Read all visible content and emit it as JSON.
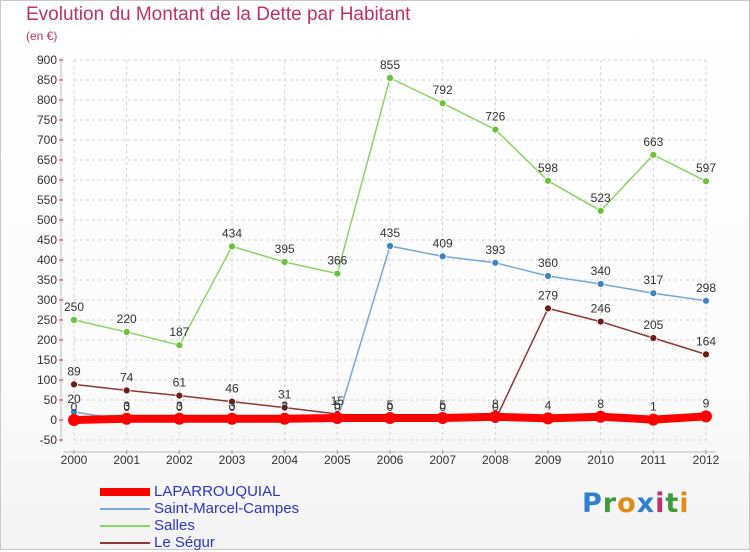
{
  "title": "Evolution du Montant de la Dette par Habitant",
  "unit": "(en €)",
  "logo": {
    "letters": [
      {
        "ch": "P",
        "color": "#2f7fd0"
      },
      {
        "ch": "r",
        "color": "#3d9a3d"
      },
      {
        "ch": "o",
        "color": "#e08a1a"
      },
      {
        "ch": "x",
        "color": "#2f7fd0"
      },
      {
        "ch": "i",
        "color": "#c0306b"
      },
      {
        "ch": "t",
        "color": "#3d9a3d"
      },
      {
        "ch": "i",
        "color": "#e08a1a"
      }
    ]
  },
  "chart_data": {
    "type": "line",
    "title": "Evolution du Montant de la Dette par Habitant",
    "ylabel": "(en €)",
    "xlabel": "",
    "x": [
      "2000",
      "2001",
      "2002",
      "2003",
      "2004",
      "2005",
      "2006",
      "2007",
      "2008",
      "2009",
      "2010",
      "2011",
      "2012"
    ],
    "ylim": [
      -50,
      900
    ],
    "yticks": [
      -50,
      0,
      50,
      100,
      150,
      200,
      250,
      300,
      350,
      400,
      450,
      500,
      550,
      600,
      650,
      700,
      750,
      800,
      850,
      900
    ],
    "grid": true,
    "legend_position": "bottom-left",
    "series": [
      {
        "name": "Salles",
        "color": "#8fd36b",
        "marker": "#6ac23a",
        "values": [
          250,
          220,
          187,
          434,
          395,
          366,
          855,
          792,
          726,
          598,
          523,
          663,
          597
        ],
        "labels": [
          "250",
          "220",
          "187",
          "434",
          "395",
          "366",
          "855",
          "792",
          "726",
          "598",
          "523",
          "663",
          "597"
        ]
      },
      {
        "name": "Saint-Marcel-Campes",
        "color": "#7aa7d8",
        "marker": "#3d84c4",
        "values": [
          20,
          0,
          0,
          0,
          0,
          0,
          435,
          409,
          393,
          360,
          340,
          317,
          298
        ],
        "labels": [
          "20",
          "0",
          "0",
          "0",
          "0",
          "0",
          "435",
          "409",
          "393",
          "360",
          "340",
          "317",
          "298"
        ]
      },
      {
        "name": "Le Ségur",
        "color": "#8a3a3a",
        "marker": "#6b1c1c",
        "values": [
          89,
          74,
          61,
          46,
          31,
          15,
          0,
          0,
          0,
          279,
          246,
          205,
          164
        ],
        "labels": [
          "89",
          "74",
          "61",
          "46",
          "31",
          "15",
          "0",
          "0",
          "0",
          "279",
          "246",
          "205",
          "164"
        ]
      },
      {
        "name": "LAPARROUQUIAL",
        "color": "#ff0000",
        "marker": "#ff0000",
        "thick": true,
        "values": [
          0,
          3,
          3,
          3,
          3,
          5,
          5,
          5,
          8,
          4,
          8,
          1,
          9
        ],
        "labels": [
          "0",
          "3",
          "3",
          "3",
          "3",
          "5",
          "5",
          "5",
          "8",
          "4",
          "8",
          "1",
          "9"
        ]
      }
    ],
    "legend": [
      {
        "name": "LAPARROUQUIAL",
        "color": "#ff0000",
        "thick": true
      },
      {
        "name": "Saint-Marcel-Campes",
        "color": "#7aa7d8"
      },
      {
        "name": "Salles",
        "color": "#8fd36b"
      },
      {
        "name": "Le Ségur",
        "color": "#8a3a3a"
      }
    ]
  }
}
